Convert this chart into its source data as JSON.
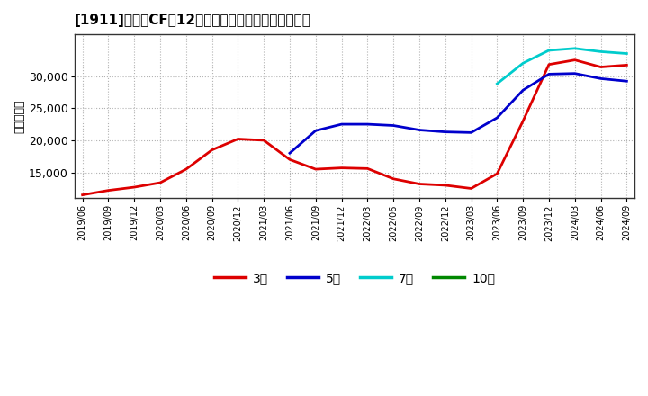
{
  "title": "[1911]　営業CFだ12か月移動合計の標準偏差の推移",
  "ylabel": "（百万円）",
  "background_color": "#ffffff",
  "plot_bg_color": "#ffffff",
  "grid_color": "#aaaaaa",
  "ylim": [
    11000,
    36500
  ],
  "yticks": [
    15000,
    20000,
    25000,
    30000
  ],
  "series": {
    "3年": {
      "color": "#dd0000",
      "x": [
        "2019/06",
        "2019/09",
        "2019/12",
        "2020/03",
        "2020/06",
        "2020/09",
        "2020/12",
        "2021/03",
        "2021/06",
        "2021/09",
        "2021/12",
        "2022/03",
        "2022/06",
        "2022/09",
        "2022/12",
        "2023/03",
        "2023/06",
        "2023/09",
        "2023/12",
        "2024/03",
        "2024/06",
        "2024/09"
      ],
      "y": [
        11500,
        12200,
        12700,
        13400,
        15500,
        18500,
        20200,
        20000,
        17000,
        15500,
        15700,
        15600,
        14000,
        13200,
        13000,
        12500,
        14800,
        23000,
        31800,
        32500,
        31400,
        31700
      ]
    },
    "5年": {
      "color": "#0000cc",
      "x": [
        "2021/06",
        "2021/09",
        "2021/12",
        "2022/03",
        "2022/06",
        "2022/09",
        "2022/12",
        "2023/03",
        "2023/06",
        "2023/09",
        "2023/12",
        "2024/03",
        "2024/06",
        "2024/09"
      ],
      "y": [
        18000,
        21500,
        22500,
        22500,
        22300,
        21600,
        21300,
        21200,
        23500,
        27800,
        30300,
        30400,
        29600,
        29200
      ]
    },
    "7年": {
      "color": "#00cccc",
      "x": [
        "2023/06",
        "2023/09",
        "2023/12",
        "2024/03",
        "2024/06",
        "2024/09"
      ],
      "y": [
        28800,
        32000,
        34000,
        34300,
        33800,
        33500
      ]
    },
    "10年": {
      "color": "#008800",
      "x": [],
      "y": []
    }
  },
  "xtick_labels": [
    "2019/06",
    "2019/09",
    "2019/12",
    "2020/03",
    "2020/06",
    "2020/09",
    "2020/12",
    "2021/03",
    "2021/06",
    "2021/09",
    "2021/12",
    "2022/03",
    "2022/06",
    "2022/09",
    "2022/12",
    "2023/03",
    "2023/06",
    "2023/09",
    "2023/12",
    "2024/03",
    "2024/06",
    "2024/09"
  ],
  "legend_labels": [
    "3年",
    "5年",
    "7年",
    "10年"
  ],
  "legend_colors": [
    "#dd0000",
    "#0000cc",
    "#00cccc",
    "#008800"
  ]
}
